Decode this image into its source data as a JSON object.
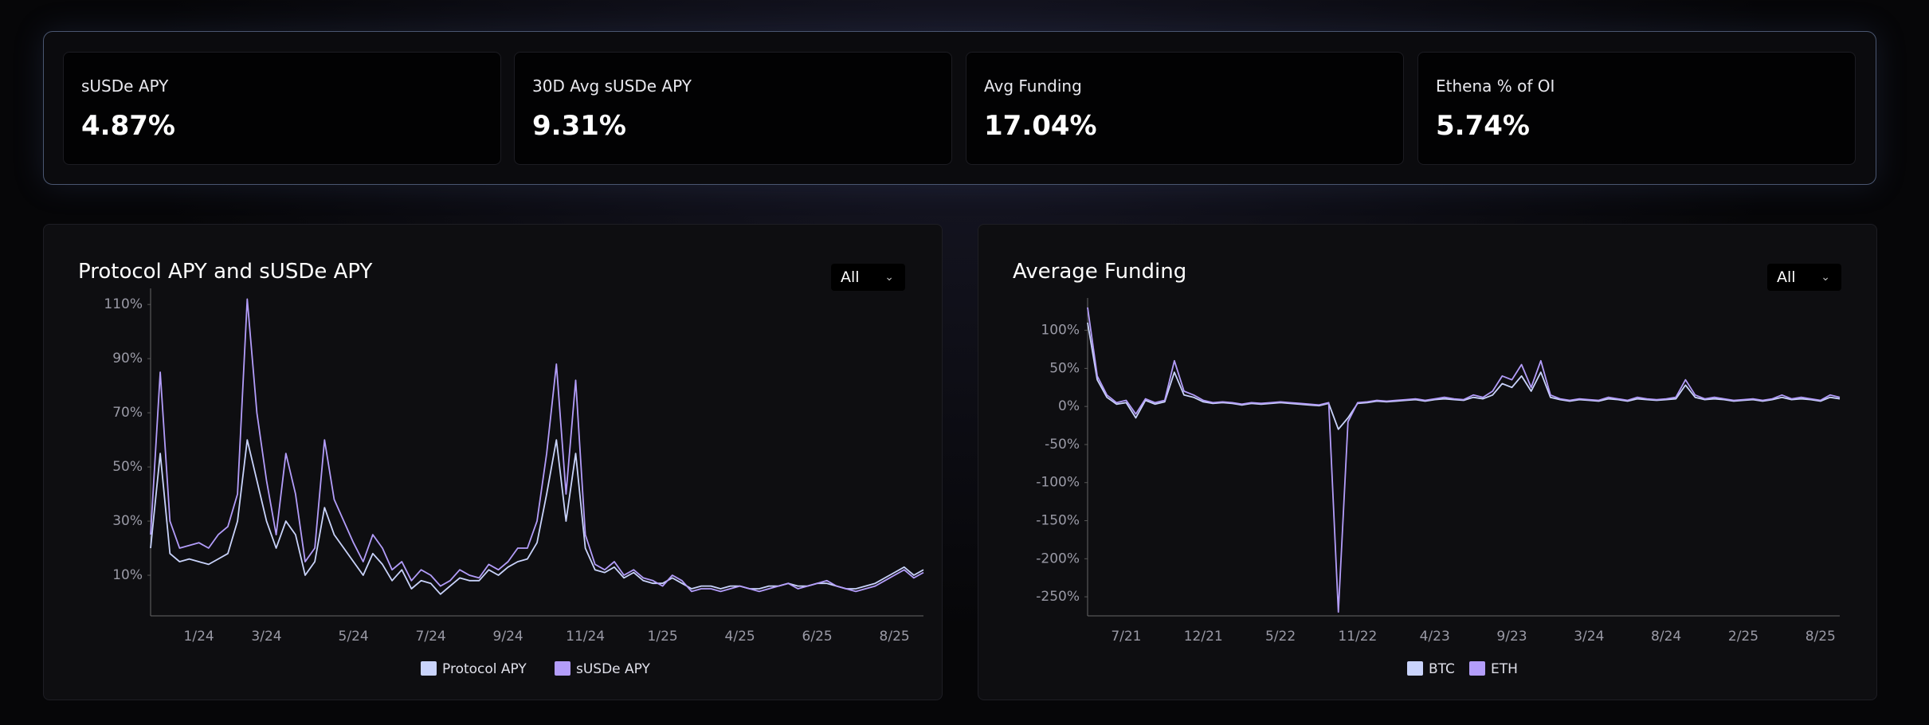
{
  "stats": [
    {
      "label": "sUSDe APY",
      "value": "4.87%"
    },
    {
      "label": "30D Avg sUSDe APY",
      "value": "9.31%"
    },
    {
      "label": "Avg Funding",
      "value": "17.04%"
    },
    {
      "label": "Ethena % of OI",
      "value": "5.74%"
    }
  ],
  "chart_data": [
    {
      "type": "line",
      "title": "Protocol APY and sUSDe APY",
      "filter": "All",
      "categories": [
        null,
        null,
        null,
        null,
        null,
        "1/24",
        null,
        null,
        null,
        null,
        null,
        null,
        "3/24",
        null,
        null,
        null,
        null,
        null,
        null,
        null,
        null,
        "5/24",
        null,
        null,
        null,
        null,
        null,
        null,
        null,
        "7/24",
        null,
        null,
        null,
        null,
        null,
        null,
        null,
        "9/24",
        null,
        null,
        null,
        null,
        null,
        null,
        null,
        "11/24",
        null,
        null,
        null,
        null,
        null,
        null,
        null,
        "1/25",
        null,
        null,
        null,
        null,
        null,
        null,
        null,
        "4/25",
        null,
        null,
        null,
        null,
        null,
        null,
        null,
        "6/25",
        null,
        null,
        null,
        null,
        null,
        null,
        null,
        "8/25",
        null,
        null,
        null
      ],
      "series": [
        {
          "name": "Protocol APY",
          "color": "#c9d3fb",
          "values": [
            20,
            55,
            18,
            15,
            16,
            15,
            14,
            16,
            18,
            30,
            60,
            45,
            30,
            20,
            30,
            25,
            10,
            15,
            35,
            25,
            20,
            15,
            10,
            18,
            14,
            8,
            12,
            5,
            8,
            7,
            3,
            6,
            9,
            8,
            8,
            12,
            10,
            13,
            15,
            16,
            22,
            40,
            60,
            30,
            55,
            20,
            12,
            11,
            13,
            9,
            11,
            8,
            7,
            7,
            9,
            7,
            5,
            6,
            6,
            5,
            6,
            6,
            5,
            5,
            6,
            6,
            7,
            6,
            6,
            7,
            7,
            6,
            5,
            5,
            6,
            7,
            9,
            11,
            13,
            10,
            12
          ]
        },
        {
          "name": "sUSDe APY",
          "color": "#b39dfa",
          "values": [
            25,
            85,
            30,
            20,
            21,
            22,
            20,
            25,
            28,
            40,
            112,
            70,
            45,
            25,
            55,
            40,
            15,
            20,
            60,
            38,
            30,
            22,
            15,
            25,
            20,
            12,
            15,
            8,
            12,
            10,
            6,
            8,
            12,
            10,
            9,
            14,
            12,
            15,
            20,
            20,
            30,
            55,
            88,
            40,
            82,
            25,
            14,
            12,
            15,
            10,
            12,
            9,
            8,
            6,
            10,
            8,
            4,
            5,
            5,
            4,
            5,
            6,
            5,
            4,
            5,
            6,
            7,
            5,
            6,
            7,
            8,
            6,
            5,
            4,
            5,
            6,
            8,
            10,
            12,
            9,
            11
          ]
        }
      ],
      "ylim": [
        -5,
        113
      ],
      "yticks": [
        {
          "value": 110,
          "label": "110%"
        },
        {
          "value": 90,
          "label": "90%"
        },
        {
          "value": 70,
          "label": "70%"
        },
        {
          "value": 50,
          "label": "50%"
        },
        {
          "value": 30,
          "label": "30%"
        },
        {
          "value": 10,
          "label": "10%"
        }
      ],
      "grid": false
    },
    {
      "type": "line",
      "title": "Average Funding",
      "filter": "All",
      "categories": [
        null,
        null,
        null,
        null,
        "7/21",
        null,
        null,
        null,
        null,
        null,
        null,
        null,
        "12/21",
        null,
        null,
        null,
        null,
        null,
        null,
        null,
        "5/22",
        null,
        null,
        null,
        null,
        null,
        null,
        null,
        "11/22",
        null,
        null,
        null,
        null,
        null,
        null,
        null,
        "4/23",
        null,
        null,
        null,
        null,
        null,
        null,
        null,
        "9/23",
        null,
        null,
        null,
        null,
        null,
        null,
        null,
        "3/24",
        null,
        null,
        null,
        null,
        null,
        null,
        null,
        "8/24",
        null,
        null,
        null,
        null,
        null,
        null,
        null,
        "2/25",
        null,
        null,
        null,
        null,
        null,
        null,
        null,
        "8/25",
        null,
        null
      ],
      "series": [
        {
          "name": "BTC",
          "color": "#c9d3fb",
          "values": [
            110,
            35,
            12,
            3,
            5,
            -15,
            8,
            3,
            6,
            45,
            15,
            12,
            6,
            4,
            5,
            4,
            2,
            4,
            3,
            4,
            5,
            4,
            3,
            2,
            1,
            4,
            -30,
            -15,
            4,
            5,
            7,
            6,
            7,
            8,
            9,
            7,
            9,
            10,
            9,
            8,
            12,
            10,
            15,
            30,
            25,
            40,
            20,
            45,
            12,
            9,
            7,
            9,
            8,
            7,
            10,
            9,
            7,
            10,
            9,
            8,
            9,
            10,
            28,
            12,
            9,
            10,
            9,
            7,
            8,
            9,
            7,
            9,
            12,
            9,
            10,
            9,
            7,
            12,
            10
          ]
        },
        {
          "name": "ETH",
          "color": "#b39dfa",
          "values": [
            130,
            40,
            15,
            5,
            8,
            -10,
            10,
            5,
            8,
            60,
            20,
            15,
            8,
            5,
            6,
            5,
            3,
            5,
            4,
            5,
            6,
            5,
            4,
            3,
            2,
            5,
            -270,
            -20,
            5,
            6,
            8,
            7,
            8,
            9,
            10,
            8,
            10,
            12,
            10,
            9,
            15,
            12,
            20,
            40,
            35,
            55,
            25,
            60,
            15,
            10,
            8,
            10,
            9,
            8,
            12,
            10,
            8,
            12,
            10,
            9,
            10,
            12,
            35,
            15,
            10,
            12,
            10,
            8,
            9,
            10,
            8,
            10,
            15,
            10,
            12,
            10,
            8,
            15,
            12
          ]
        }
      ],
      "ylim": [
        -275,
        132
      ],
      "yticks": [
        {
          "value": 100,
          "label": "100%"
        },
        {
          "value": 50,
          "label": "50%"
        },
        {
          "value": 0,
          "label": "0%"
        },
        {
          "value": -50,
          "label": "-50%"
        },
        {
          "value": -100,
          "label": "-100%"
        },
        {
          "value": -150,
          "label": "-150%"
        },
        {
          "value": -200,
          "label": "-200%"
        },
        {
          "value": -250,
          "label": "-250%"
        }
      ],
      "grid": false
    }
  ]
}
